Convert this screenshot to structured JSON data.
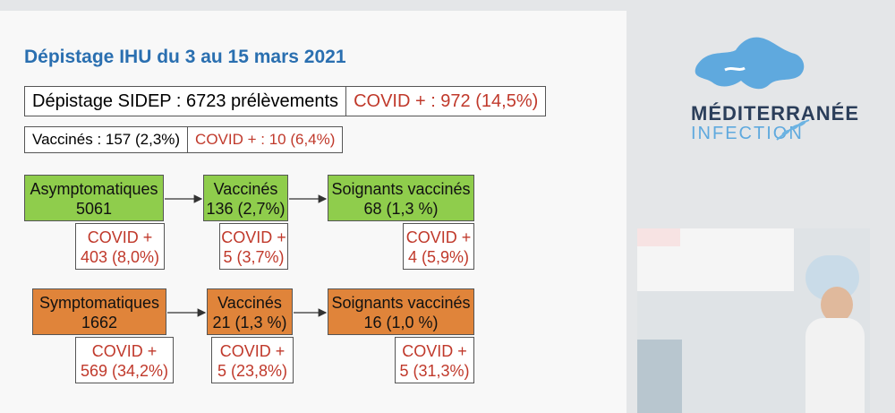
{
  "title": "Dépistage IHU du 3 au 15 mars 2021",
  "summary": {
    "sidep": "Dépistage SIDEP : 6723 prélèvements",
    "sidep_covid": "COVID + : 972 (14,5%)",
    "vaccines": "Vaccinés : 157 (2,3%)",
    "vaccines_covid": "COVID + : 10 (6,4%)"
  },
  "asymptomatic": {
    "group": [
      "Asymptomatiques",
      "5061"
    ],
    "group_covid": [
      "COVID +",
      "403 (8,0%)"
    ],
    "vaccinated": [
      "Vaccinés",
      "136 (2,7%)"
    ],
    "vaccinated_covid": [
      "COVID +",
      "5 (3,7%)"
    ],
    "caregivers": [
      "Soignants vaccinés",
      "68 (1,3 %)"
    ],
    "caregivers_covid": [
      "COVID +",
      "4 (5,9%)"
    ]
  },
  "symptomatic": {
    "group": [
      "Symptomatiques",
      "1662"
    ],
    "group_covid": [
      "COVID +",
      "569 (34,2%)"
    ],
    "vaccinated": [
      "Vaccinés",
      "21 (1,3 %)"
    ],
    "vaccinated_covid": [
      "COVID +",
      "5 (23,8%)"
    ],
    "caregivers": [
      "Soignants vaccinés",
      "16 (1,0 %)"
    ],
    "caregivers_covid": [
      "COVID +",
      "5 (31,3%)"
    ]
  },
  "logo": {
    "line1": "MÉDITERRANÉE",
    "line2": "INFECTION"
  },
  "colors": {
    "title": "#2a6fb0",
    "green": "#8fcd4c",
    "orange": "#e0843a",
    "covid": "#c0392b"
  }
}
